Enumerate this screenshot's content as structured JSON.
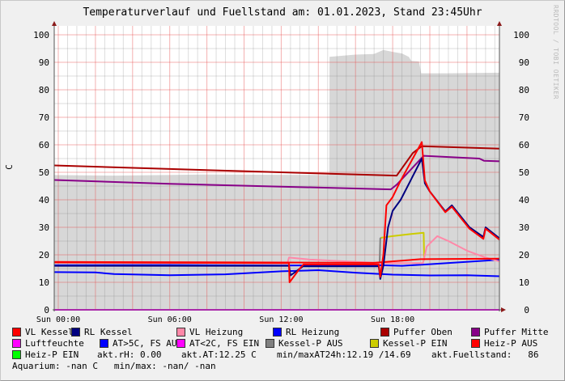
{
  "chart_data": {
    "type": "line",
    "title": "Temperaturverlauf und Fuellstand am: 01.01.2023, Stand 23:45Uhr",
    "ylabel": "C",
    "watermark": "RRDTOOL / TOBI OETIKER",
    "xlim": [
      "Sat 23:47",
      "Sun 23:45"
    ],
    "ylim": [
      0,
      103
    ],
    "y_ticks": [
      "0",
      "10",
      "20",
      "30",
      "40",
      "50",
      "60",
      "70",
      "80",
      "90",
      "100"
    ],
    "x_ticks": [
      "Sun 00:00",
      "Sun 06:00",
      "Sun 12:00",
      "Sun 18:00"
    ],
    "grid": true,
    "area": {
      "name": "akt.Fuellstand",
      "color": "#d7d7d7",
      "points": [
        [
          "Sat 23:47",
          49
        ],
        [
          "Sun 03:00",
          48.8
        ],
        [
          "Sun 08:00",
          49.2
        ],
        [
          "Sun 14:35",
          49
        ],
        [
          "Sun 14:36",
          92
        ],
        [
          "Sun 16:00",
          92.8
        ],
        [
          "Sun 17:00",
          93
        ],
        [
          "Sun 17:30",
          94.5
        ],
        [
          "Sun 18:00",
          93.8
        ],
        [
          "Sun 18:30",
          93.2
        ],
        [
          "Sun 18:52",
          92
        ],
        [
          "Sun 19:00",
          90.5
        ],
        [
          "Sun 19:25",
          90.3
        ],
        [
          "Sun 19:32",
          86
        ],
        [
          "Sun 21:00",
          86
        ],
        [
          "Sun 23:45",
          86.2
        ]
      ]
    },
    "series": [
      {
        "name": "Luftfeuchte",
        "color": "#ff00ff",
        "points": [
          [
            "Sat 23:47",
            0
          ],
          [
            "Sun 23:45",
            0
          ]
        ]
      },
      {
        "name": "AT>5C, FS AUS",
        "color": "#0000ff",
        "points": [
          [
            "Sat 23:47",
            13.7
          ],
          [
            "Sun 02:00",
            13.6
          ],
          [
            "Sun 03:00",
            13
          ],
          [
            "Sun 06:00",
            12.6
          ],
          [
            "Sun 08:00",
            12.8
          ],
          [
            "Sun 09:00",
            12.9
          ],
          [
            "Sun 12:00",
            14
          ],
          [
            "Sun 14:00",
            14.4
          ],
          [
            "Sun 16:00",
            13.5
          ],
          [
            "Sun 18:00",
            12.8
          ],
          [
            "Sun 20:00",
            12.5
          ],
          [
            "Sun 22:00",
            12.6
          ],
          [
            "Sun 23:45",
            12.2
          ]
        ]
      },
      {
        "name": "RL Heizung",
        "color": "#0000ff",
        "points": [
          [
            "Sat 23:47",
            16.2
          ],
          [
            "Sun 06:00",
            16.3
          ],
          [
            "Sun 12:00",
            16.1
          ],
          [
            "Sun 17:20",
            16.2
          ],
          [
            "Sun 18:30",
            16
          ],
          [
            "Sun 20:00",
            16.6
          ],
          [
            "Sun 23:45",
            18.2
          ]
        ]
      },
      {
        "name": "Kessel-P AUS",
        "color": "#808080",
        "points": [
          [
            "Sun 17:18",
            17
          ],
          [
            "Sun 17:20",
            26
          ],
          [
            "Sun 17:24",
            26.2
          ]
        ]
      },
      {
        "name": "Kessel-P EIN",
        "color": "#cccc00",
        "points": [
          [
            "Sun 17:22",
            26.2
          ],
          [
            "Sun 18:00",
            26.8
          ],
          [
            "Sun 19:00",
            27.6
          ],
          [
            "Sun 19:40",
            28
          ],
          [
            "Sun 19:42",
            18
          ]
        ]
      },
      {
        "name": "VL Heizung",
        "color": "#ff88a8",
        "points": [
          [
            "Sat 23:47",
            17.2
          ],
          [
            "Sun 12:20",
            17
          ],
          [
            "Sun 12:25",
            19
          ],
          [
            "Sun 13:30",
            18.3
          ],
          [
            "Sun 17:20",
            17
          ],
          [
            "Sun 19:38",
            17
          ],
          [
            "Sun 19:50",
            23
          ],
          [
            "Sun 20:24",
            26.8
          ],
          [
            "Sun 21:00",
            25
          ],
          [
            "Sun 22:00",
            21.5
          ],
          [
            "Sun 23:00",
            19
          ],
          [
            "Sun 23:45",
            17.6
          ]
        ]
      },
      {
        "name": "Heiz-P AUS",
        "color": "#ff0000",
        "points": [
          [
            "Sat 23:47",
            17.4
          ],
          [
            "Sun 12:00",
            17.2
          ],
          [
            "Sun 17:00",
            17.1
          ],
          [
            "Sun 19:30",
            18.4
          ],
          [
            "Sun 23:45",
            18.6
          ]
        ]
      },
      {
        "name": "Puffer Oben",
        "color": "#aa0000",
        "points": [
          [
            "Sat 23:47",
            52.5
          ],
          [
            "Sun 06:00",
            51.2
          ],
          [
            "Sun 12:00",
            50
          ],
          [
            "Sun 18:13",
            48.8
          ],
          [
            "Sun 19:05",
            57
          ],
          [
            "Sun 19:34",
            59.5
          ],
          [
            "Sun 23:45",
            58.6
          ]
        ]
      },
      {
        "name": "Puffer Mitte",
        "color": "#880088",
        "points": [
          [
            "Sat 23:47",
            47.2
          ],
          [
            "Sun 06:00",
            45.8
          ],
          [
            "Sun 12:00",
            44.8
          ],
          [
            "Sun 17:54",
            43.8
          ],
          [
            "Sun 18:13",
            45.5
          ],
          [
            "Sun 19:40",
            56
          ],
          [
            "Sun 22:40",
            55
          ],
          [
            "Sun 22:55",
            54.2
          ],
          [
            "Sun 23:45",
            54
          ]
        ]
      },
      {
        "name": "RL Kessel",
        "color": "#000080",
        "points": [
          [
            "Sat 23:47",
            16
          ],
          [
            "Sun 12:25",
            16
          ],
          [
            "Sun 12:30",
            12.5
          ],
          [
            "Sun 13:10",
            15.8
          ],
          [
            "Sun 17:15",
            15.8
          ],
          [
            "Sun 17:20",
            11.2
          ],
          [
            "Sun 17:30",
            16
          ],
          [
            "Sun 17:45",
            30
          ],
          [
            "Sun 18:00",
            36
          ],
          [
            "Sun 18:26",
            40
          ],
          [
            "Sun 19:34",
            55
          ],
          [
            "Sun 19:44",
            46
          ],
          [
            "Sun 20:00",
            43
          ],
          [
            "Sun 20:50",
            35.8
          ],
          [
            "Sun 21:11",
            38
          ],
          [
            "Sun 22:08",
            30
          ],
          [
            "Sun 22:53",
            26.5
          ],
          [
            "Sun 23:00",
            30
          ],
          [
            "Sun 23:45",
            26
          ]
        ]
      },
      {
        "name": "VL Kessel",
        "color": "#ff0000",
        "points": [
          [
            "Sat 23:47",
            17.2
          ],
          [
            "Sun 12:25",
            17
          ],
          [
            "Sun 12:27",
            10
          ],
          [
            "Sun 13:00",
            15
          ],
          [
            "Sun 13:12",
            16.5
          ],
          [
            "Sun 17:15",
            16.5
          ],
          [
            "Sun 17:20",
            12
          ],
          [
            "Sun 17:30",
            20
          ],
          [
            "Sun 17:40",
            38
          ],
          [
            "Sun 18:00",
            41
          ],
          [
            "Sun 18:26",
            47
          ],
          [
            "Sun 19:34",
            61
          ],
          [
            "Sun 19:44",
            47
          ],
          [
            "Sun 20:00",
            43
          ],
          [
            "Sun 20:50",
            35.5
          ],
          [
            "Sun 21:11",
            37.5
          ],
          [
            "Sun 22:08",
            29.5
          ],
          [
            "Sun 22:53",
            25.8
          ],
          [
            "Sun 23:00",
            29.5
          ],
          [
            "Sun 23:45",
            25.5
          ]
        ]
      }
    ]
  },
  "legend": {
    "rows": [
      [
        {
          "label": "VL Kessel",
          "color": "#ff0000"
        },
        {
          "label": "RL Kessel",
          "color": "#000080"
        },
        {
          "label": "VL Heizung",
          "color": "#ff88a8"
        },
        {
          "label": "RL Heizung",
          "color": "#0000ff"
        },
        {
          "label": "Puffer Oben",
          "color": "#aa0000"
        },
        {
          "label": "Puffer Mitte",
          "color": "#880088"
        }
      ],
      [
        {
          "label": "Luftfeuchte",
          "color": "#ff00ff"
        },
        {
          "label": "AT>5C, FS AUS",
          "color": "#0000ff"
        },
        {
          "label": "AT<2C, FS EIN",
          "color": "#ff00ff"
        },
        {
          "label": "Kessel-P AUS",
          "color": "#808080"
        },
        {
          "label": "Kessel-P EIN",
          "color": "#cccc00"
        },
        {
          "label": "Heiz-P AUS",
          "color": "#ff0000"
        }
      ]
    ],
    "heizp_ein": {
      "label": "Heiz-P EIN",
      "color": "#00ff00"
    },
    "akt_rh": "akt.rH: 0.00",
    "akt_at": "akt.AT:12.25 C",
    "minmax_at": "min/maxAT24h:12.19 /14.69",
    "fuellstand": "akt.Fuellstand:   86",
    "aquarium": "Aquarium: -nan C   min/max: -nan/ -nan"
  }
}
